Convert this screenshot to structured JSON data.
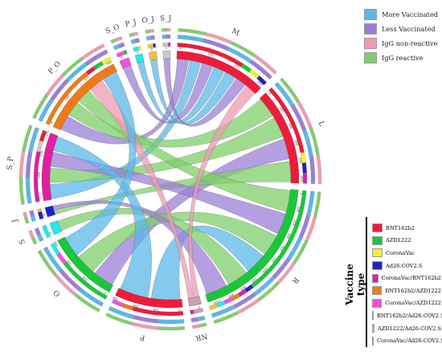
{
  "legend_colors": {
    "title": "",
    "items": [
      {
        "label": "More Vaccinated",
        "color": "#5bb7e8"
      },
      {
        "label": "Less Vaccinated",
        "color": "#9b7fd6"
      },
      {
        "label": "IgG non-reactive",
        "color": "#f09ab0"
      },
      {
        "label": "IgG reactive",
        "color": "#7fcf6a"
      }
    ]
  },
  "vaccine_legend": {
    "title": "Vaccine type",
    "items": [
      {
        "label": "BNT162b2",
        "color": "#ee1c3a"
      },
      {
        "label": "AZD1222",
        "color": "#18c83a"
      },
      {
        "label": "CoronaVac",
        "color": "#f5f02a"
      },
      {
        "label": "Ad26.COV2.S",
        "color": "#2222cc"
      },
      {
        "label": "CoronaVac/BNT162b2",
        "color": "#e020a0"
      },
      {
        "label": "BNT162b2/AZD1222",
        "color": "#f07a1a"
      },
      {
        "label": "CoronaVac/AZD1222",
        "color": "#f050e0"
      },
      {
        "label": "BNT162b2/Ad26.COV2.S",
        "color": "#22e8f0"
      },
      {
        "label": "AZD1222/Ad26.COV2.S",
        "color": "#f0c040"
      },
      {
        "label": "CoronaVac/Ad26.COV2.S",
        "color": "#c8c8c8"
      }
    ]
  },
  "groups": [
    {
      "name": "M",
      "span": 38,
      "color": "#ee1c3a",
      "ticks": [
        "0",
        "100",
        "200",
        "300"
      ]
    },
    {
      "name": "L",
      "span": 40,
      "color": "#ee1c3a",
      "ticks": [
        "0",
        "100",
        "200",
        "300",
        "400",
        "500"
      ]
    },
    {
      "name": "R",
      "span": 62,
      "color": "#18c83a",
      "ticks": [
        "0",
        "100",
        "200",
        "300",
        "400",
        "500",
        "600",
        "700",
        "800",
        "900",
        "1000"
      ]
    },
    {
      "name": "NR",
      "span": 5,
      "color": "#c8a0a8",
      "ticks": [
        "0"
      ]
    },
    {
      "name": "P",
      "span": 28,
      "color": "#ee1c3a",
      "ticks": [
        "0",
        "100",
        "200",
        "300"
      ]
    },
    {
      "name": "O",
      "span": 30,
      "color": "#18c83a",
      "ticks": [
        "0",
        "100",
        "200",
        "300"
      ]
    },
    {
      "name": "S",
      "span": 5,
      "color": "#22e8f0",
      "ticks": [
        "0"
      ]
    },
    {
      "name": "J",
      "span": 4,
      "color": "#2222cc",
      "ticks": [
        "0"
      ]
    },
    {
      "name": "S_P",
      "span": 28,
      "color": "#e020a0",
      "ticks": [
        "0",
        "100",
        "200",
        "300"
      ]
    },
    {
      "name": "P_O",
      "span": 36,
      "color": "#f07a1a",
      "ticks": [
        "0",
        "100",
        "200",
        "300"
      ]
    },
    {
      "name": "S_O",
      "span": 4,
      "color": "#f050e0",
      "ticks": [
        "0"
      ]
    },
    {
      "name": "P_J",
      "span": 3,
      "color": "#22e8f0",
      "ticks": [
        "0"
      ]
    },
    {
      "name": "O_J",
      "span": 3,
      "color": "#f0c040",
      "ticks": [
        "0"
      ]
    },
    {
      "name": "S_J",
      "span": 3,
      "color": "#c8c8c8",
      "ticks": [
        "0"
      ]
    }
  ],
  "ribbons": [
    {
      "from": "M",
      "to": "P_O",
      "category": "Less Vaccinated",
      "color": "#9b7fd6"
    },
    {
      "from": "M",
      "to": "S_P",
      "category": "More Vaccinated",
      "color": "#5bb7e8"
    },
    {
      "from": "M",
      "to": "S_O",
      "category": "Less Vaccinated",
      "color": "#9b7fd6"
    },
    {
      "from": "M",
      "to": "P_J",
      "category": "More Vaccinated",
      "color": "#5bb7e8"
    },
    {
      "from": "M",
      "to": "O_J",
      "category": "More Vaccinated",
      "color": "#5bb7e8"
    },
    {
      "from": "M",
      "to": "S_J",
      "category": "Less Vaccinated",
      "color": "#9b7fd6"
    },
    {
      "from": "L",
      "to": "P_O",
      "category": "IgG reactive",
      "color": "#7fcf6a"
    },
    {
      "from": "L",
      "to": "S_P",
      "category": "IgG reactive",
      "color": "#7fcf6a"
    },
    {
      "from": "L",
      "to": "O",
      "category": "Less Vaccinated",
      "color": "#9b7fd6"
    },
    {
      "from": "L",
      "to": "J",
      "category": "IgG reactive",
      "color": "#7fcf6a"
    },
    {
      "from": "R",
      "to": "P_O",
      "category": "IgG reactive",
      "color": "#7fcf6a"
    },
    {
      "from": "R",
      "to": "S_P",
      "category": "Less Vaccinated",
      "color": "#9b7fd6"
    },
    {
      "from": "R",
      "to": "O",
      "category": "IgG reactive",
      "color": "#7fcf6a"
    },
    {
      "from": "R",
      "to": "P",
      "category": "More Vaccinated",
      "color": "#5bb7e8"
    },
    {
      "from": "R",
      "to": "S",
      "category": "IgG reactive",
      "color": "#7fcf6a"
    },
    {
      "from": "R",
      "to": "J",
      "category": "Less Vaccinated",
      "color": "#9b7fd6"
    },
    {
      "from": "NR",
      "to": "M",
      "category": "IgG non-reactive",
      "color": "#f09ab0"
    },
    {
      "from": "NR",
      "to": "P_O",
      "category": "IgG non-reactive",
      "color": "#f09ab0"
    },
    {
      "from": "P",
      "to": "S_P",
      "category": "More Vaccinated",
      "color": "#5bb7e8"
    },
    {
      "from": "O",
      "to": "P_O",
      "category": "More Vaccinated",
      "color": "#5bb7e8"
    }
  ]
}
